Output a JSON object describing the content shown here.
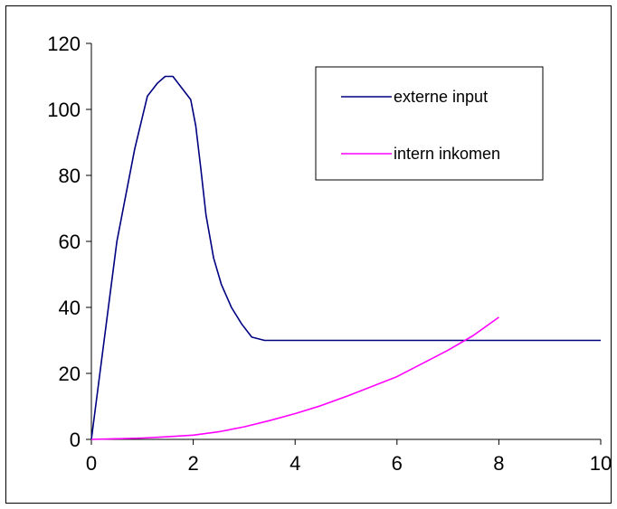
{
  "chart_data": {
    "type": "line",
    "title": "",
    "xlabel": "",
    "ylabel": "",
    "xlim": [
      0,
      10
    ],
    "ylim": [
      0,
      120
    ],
    "x_ticks": [
      "0",
      "2",
      "4",
      "6",
      "8",
      "10"
    ],
    "y_ticks": [
      "0",
      "20",
      "40",
      "60",
      "80",
      "100",
      "120"
    ],
    "grid": false,
    "legend_position": "top-right",
    "series": [
      {
        "name": "externe input",
        "color": "#000080",
        "x": [
          0,
          0.5,
          0.85,
          1.1,
          1.3,
          1.45,
          1.6,
          1.8,
          1.95,
          2.05,
          2.15,
          2.25,
          2.4,
          2.55,
          2.75,
          2.95,
          3.15,
          3.4,
          4,
          5,
          6,
          7,
          8,
          9,
          10
        ],
        "y": [
          0,
          60,
          88,
          104,
          108,
          110,
          110,
          106,
          103,
          95,
          82,
          68,
          55,
          47,
          40,
          35,
          31,
          30,
          30,
          30,
          30,
          30,
          30,
          30,
          30
        ]
      },
      {
        "name": "intern inkomen",
        "color": "#FF00FF",
        "x": [
          0,
          0.5,
          1,
          1.5,
          2,
          2.5,
          3,
          3.5,
          4,
          4.5,
          5,
          5.5,
          6,
          6.5,
          7,
          7.5,
          8
        ],
        "y": [
          0,
          0.2,
          0.4,
          0.8,
          1.3,
          2.3,
          3.8,
          5.7,
          7.8,
          10.2,
          13,
          16,
          19,
          23,
          27,
          31.5,
          37
        ]
      }
    ]
  }
}
